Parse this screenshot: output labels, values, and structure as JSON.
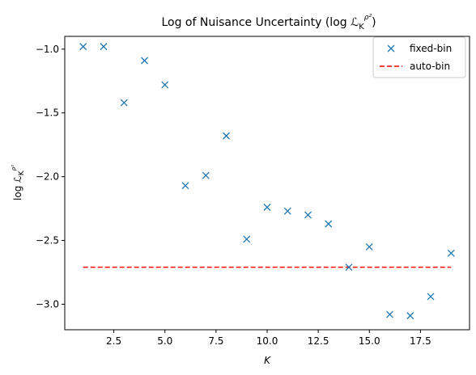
{
  "chart_data": {
    "type": "scatter",
    "title_main": "Log of Nuisance Uncertainty (log ",
    "title_symbol": "ℒ",
    "title_sub": "K",
    "title_sup": "ρ²",
    "title_close": ")",
    "xlabel": "K",
    "ylabel_main": "log ",
    "ylabel_symbol": "ℒ",
    "ylabel_sub": "K",
    "ylabel_sup": "ρ²",
    "xlim": [
      0.1,
      19.9
    ],
    "ylim": [
      -3.2,
      -0.9
    ],
    "xticks": [
      2.5,
      5.0,
      7.5,
      10.0,
      12.5,
      15.0,
      17.5
    ],
    "xtick_labels": [
      "2.5",
      "5.0",
      "7.5",
      "10.0",
      "12.5",
      "15.0",
      "17.5"
    ],
    "yticks": [
      -1.0,
      -1.5,
      -2.0,
      -2.5,
      -3.0
    ],
    "ytick_labels": [
      "−1.0",
      "−1.5",
      "−2.0",
      "−2.5",
      "−3.0"
    ],
    "grid": false,
    "legend_position": "top-right",
    "series": [
      {
        "name": "fixed-bin",
        "marker": "x",
        "color": "#1f77b4",
        "x": [
          1,
          2,
          3,
          4,
          5,
          6,
          7,
          8,
          9,
          10,
          11,
          12,
          13,
          14,
          15,
          16,
          17,
          18,
          19
        ],
        "y": [
          -0.98,
          -0.98,
          -1.42,
          -1.09,
          -1.28,
          -2.07,
          -1.99,
          -1.68,
          -2.49,
          -2.24,
          -2.27,
          -2.3,
          -2.37,
          -2.71,
          -2.55,
          -3.08,
          -3.09,
          -2.94,
          -2.6
        ]
      },
      {
        "name": "auto-bin",
        "style": "dashed-line",
        "color": "#ff0000",
        "x": [
          1,
          19
        ],
        "y": [
          -2.71,
          -2.71
        ]
      }
    ]
  }
}
